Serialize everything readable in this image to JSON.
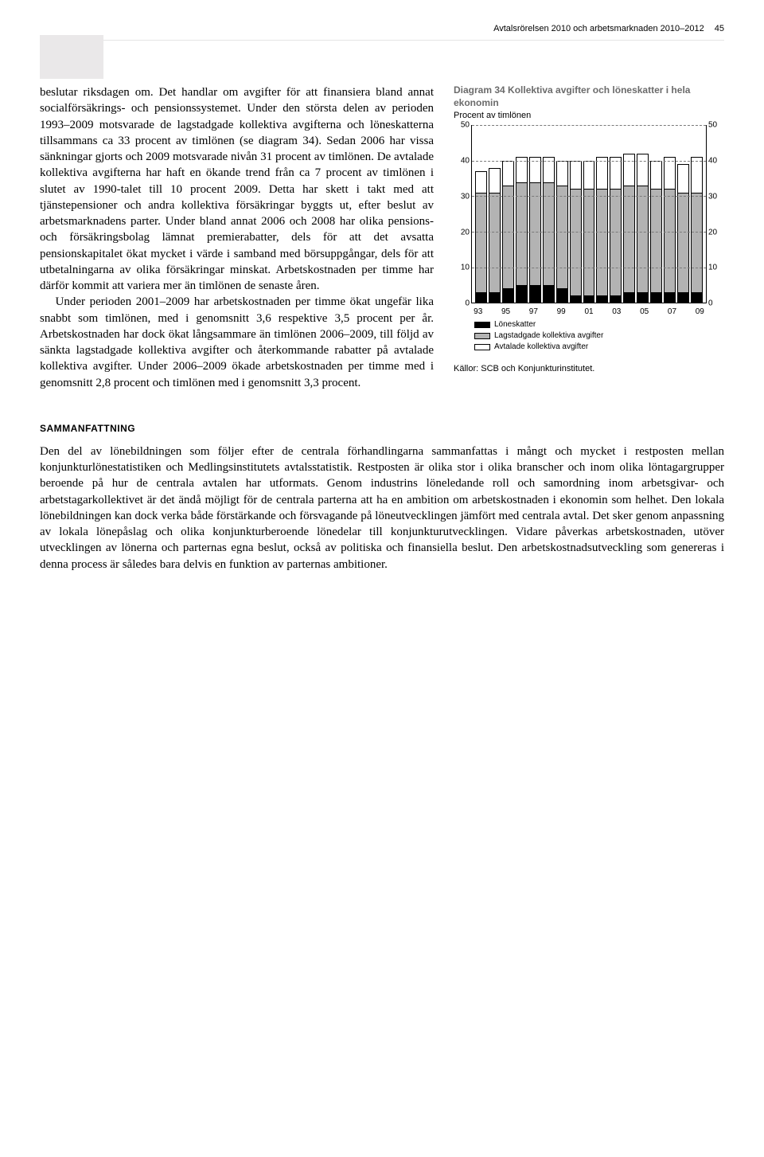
{
  "header": {
    "running": "Avtalsrörelsen 2010 och arbetsmarknaden 2010–2012",
    "pagenum": "45"
  },
  "body": {
    "p1": "beslutar riksdagen om. Det handlar om avgifter för att finansiera bland annat socialförsäkrings- och pensionssystemet. Under den största delen av perioden 1993–2009 motsvarade de lagstadgade kollektiva avgifterna och löneskatterna tillsammans ca 33 procent av timlönen (se diagram 34). Sedan 2006 har vissa sänkningar gjorts och 2009 motsvarade nivån 31 procent av timlönen. De avtalade kollektiva avgifterna har haft en ökande trend från ca 7 procent av timlönen i slutet av 1990-talet till 10 procent 2009. Detta har skett i takt med att tjänstepensioner och andra kollektiva försäkringar byggts ut, efter beslut av arbetsmarknadens parter. Under bland annat 2006 och 2008 har olika pensions- och försäkringsbolag lämnat premierabatter, dels för att det avsatta pensionskapitalet ökat mycket i värde i samband med börsuppgångar, dels för att utbetalningarna av olika försäkringar minskat. Arbetskostnaden per timme har därför kommit att variera mer än timlönen de senaste åren.",
    "p2": "Under perioden 2001–2009 har arbetskostnaden per timme ökat ungefär lika snabbt som timlönen, med i genomsnitt 3,6 respektive 3,5 procent per år. Arbetskostnaden har dock ökat långsammare än timlönen 2006–2009, till följd av sänkta lagstadgade kollektiva avgifter och återkommande rabatter på avtalade kollektiva avgifter. Under 2006–2009 ökade arbetskostnaden per timme med i genomsnitt 2,8 procent och timlönen med i genomsnitt 3,3 procent.",
    "heading": "SAMMANFATTNING",
    "p3": "Den del av lönebildningen som följer efter de centrala förhandlingarna sammanfattas i mångt och mycket i restposten mellan konjunkturlönestatistiken och Medlingsinstitutets avtalsstatistik. Restposten är olika stor i olika branscher och inom olika löntagargrupper beroende på hur de centrala avtalen har utformats. Genom industrins löneledande roll och samordning inom arbetsgivar- och arbetstagarkollektivet är det ändå möjligt för de centrala parterna att ha en ambition om arbetskostnaden i ekonomin som helhet. Den lokala lönebildningen kan dock verka både förstärkande och försvagande på löneutvecklingen jämfört med centrala avtal. Det sker genom anpassning av lokala lönepåslag och olika konjunkturberoende lönedelar till konjunkturutvecklingen. Vidare påverkas arbetskostnaden, utöver utvecklingen av lönerna och parternas egna beslut, också av politiska och finansiella beslut. Den arbetskostnadsutveckling som genereras i denna process är således bara delvis en funktion av parternas ambitioner."
  },
  "chart": {
    "title": "Diagram 34 Kollektiva avgifter och löneskatter i hela ekonomin",
    "subtitle": "Procent av timlönen",
    "type": "stacked-bar",
    "ylim": [
      0,
      50
    ],
    "yticks": [
      0,
      10,
      20,
      30,
      40,
      50
    ],
    "xticks": [
      "93",
      "95",
      "97",
      "99",
      "01",
      "03",
      "05",
      "07",
      "09"
    ],
    "years": [
      "93",
      "94",
      "95",
      "96",
      "97",
      "98",
      "99",
      "00",
      "01",
      "02",
      "03",
      "04",
      "05",
      "06",
      "07",
      "08",
      "09"
    ],
    "series": {
      "loneskatter": {
        "label": "Löneskatter",
        "color": "#000000",
        "values": [
          3,
          3,
          4,
          5,
          5,
          5,
          4,
          2,
          2,
          2,
          2,
          3,
          3,
          3,
          3,
          3,
          3
        ]
      },
      "lagstadgade": {
        "label": "Lagstadgade kollektiva avgifter",
        "color": "#b3b3b3",
        "values": [
          28,
          28,
          29,
          29,
          29,
          29,
          29,
          30,
          30,
          30,
          30,
          30,
          30,
          29,
          29,
          28,
          28
        ]
      },
      "avtalade": {
        "label": "Avtalade kollektiva avgifter",
        "color": "#ffffff",
        "values": [
          6,
          7,
          7,
          7,
          7,
          7,
          7,
          8,
          8,
          9,
          9,
          9,
          9,
          8,
          9,
          8,
          10
        ]
      }
    },
    "background_color": "#ffffff",
    "grid_color": "#7a7a7a",
    "axis_fontsize": 10,
    "title_fontsize": 12,
    "source": "Källor: SCB och Konjunkturinstitutet."
  }
}
